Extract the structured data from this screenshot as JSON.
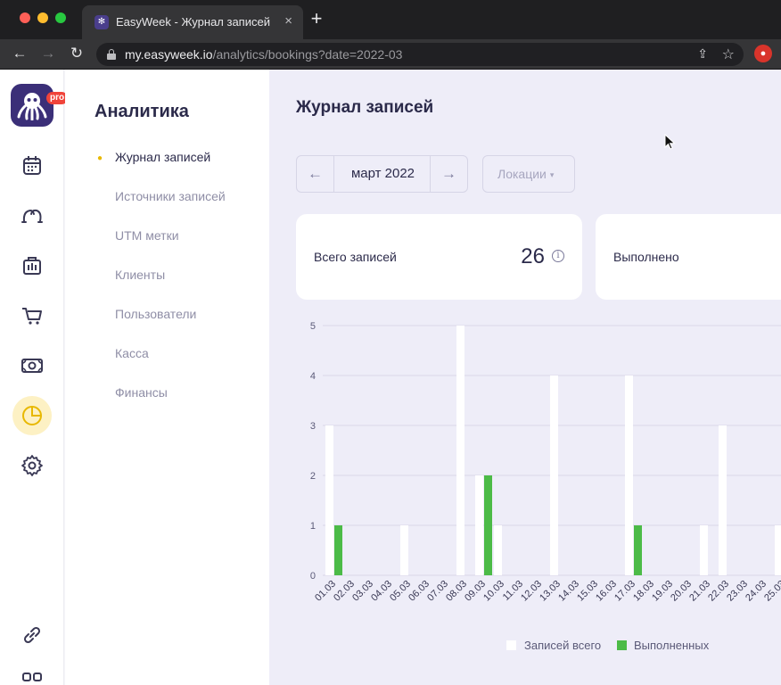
{
  "browser": {
    "tab_title": "EasyWeek - Журнал записей",
    "tab_close": "×",
    "new_tab": "+",
    "url_host": "my.easyweek.io",
    "url_path": "/analytics/bookings?date=2022-03",
    "back": "←",
    "forward": "→",
    "reload": "↻",
    "share": "⇪",
    "star": "☆",
    "favicon": "✻",
    "extension": "●"
  },
  "rail": {
    "pro_badge": "pro",
    "items": [
      "calendar",
      "staff",
      "services",
      "shop",
      "payments",
      "analytics",
      "settings",
      "link",
      "apps"
    ]
  },
  "submenu": {
    "title": "Аналитика",
    "active_marker": "●",
    "items": [
      {
        "label": "Журнал записей",
        "active": true
      },
      {
        "label": "Источники записей"
      },
      {
        "label": "UTM метки"
      },
      {
        "label": "Клиенты"
      },
      {
        "label": "Пользователи"
      },
      {
        "label": "Касса"
      },
      {
        "label": "Финансы"
      }
    ]
  },
  "main": {
    "title": "Журнал записей",
    "month_picker": {
      "prev": "←",
      "label": "март 2022",
      "next": "→"
    },
    "locations": {
      "label": "Локации",
      "caret": "▾"
    },
    "cards": [
      {
        "label": "Всего записей",
        "value": "26",
        "info": "i"
      },
      {
        "label": "Выполнено"
      }
    ]
  },
  "chart_data": {
    "type": "bar",
    "ylim": [
      0,
      5
    ],
    "yticks": [
      "0",
      "1",
      "2",
      "3",
      "4",
      "5"
    ],
    "categories": [
      "01.03",
      "02.03",
      "03.03",
      "04.03",
      "05.03",
      "06.03",
      "07.03",
      "08.03",
      "09.03",
      "10.03",
      "11.03",
      "12.03",
      "13.03",
      "14.03",
      "15.03",
      "16.03",
      "17.03",
      "18.03",
      "19.03",
      "20.03",
      "21.03",
      "22.03",
      "23.03",
      "24.03",
      "25.03"
    ],
    "series": [
      {
        "name": "Записей всего",
        "color": "#ffffff",
        "values": [
          3,
          0,
          0,
          0,
          1,
          0,
          0,
          5,
          2,
          1,
          0,
          0,
          4,
          0,
          0,
          0,
          4,
          0,
          0,
          0,
          1,
          3,
          0,
          0,
          1
        ]
      },
      {
        "name": "Выполненных",
        "color": "#4cbb47",
        "values": [
          1,
          0,
          0,
          0,
          0,
          0,
          0,
          0,
          2,
          0,
          0,
          0,
          0,
          0,
          0,
          0,
          1,
          0,
          0,
          0,
          0,
          0,
          0,
          0,
          0
        ]
      }
    ]
  }
}
